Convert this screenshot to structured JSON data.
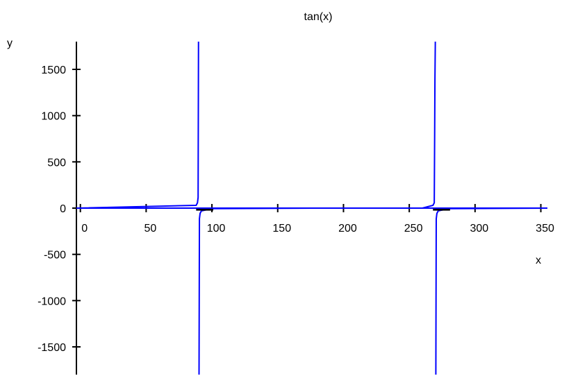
{
  "chart_data": {
    "type": "line",
    "title": "tan(x)",
    "xlabel": "x",
    "ylabel": "y",
    "xlim": [
      -3,
      355
    ],
    "ylim": [
      -1800,
      1800
    ],
    "x_ticks": [
      0,
      50,
      100,
      150,
      200,
      250,
      300,
      350
    ],
    "y_ticks": [
      1500,
      1000,
      500,
      0,
      -500,
      -1000,
      -1500
    ],
    "grid": false,
    "legend": "none",
    "series": [
      {
        "color": "#0000ff",
        "x": [
          -3,
          88,
          89,
          89.5,
          89.8,
          90.2,
          90.5,
          91,
          92,
          100,
          180,
          260,
          268,
          269,
          269.3,
          269.5,
          269.8,
          270.2,
          270.5,
          271,
          272,
          280,
          355
        ],
        "y": [
          0,
          30,
          57,
          115,
          1800,
          -1800,
          -115,
          -57,
          -30,
          -6,
          0,
          0,
          30,
          57,
          800,
          1380,
          1800,
          -1800,
          -115,
          -57,
          -30,
          -6,
          0
        ]
      }
    ],
    "marker_segments": [
      {
        "color": "#000000",
        "x": [
          88,
          101
        ],
        "y": [
          -8,
          -8
        ]
      },
      {
        "color": "#000000",
        "x": [
          268,
          281
        ],
        "y": [
          -8,
          -8
        ]
      }
    ]
  }
}
